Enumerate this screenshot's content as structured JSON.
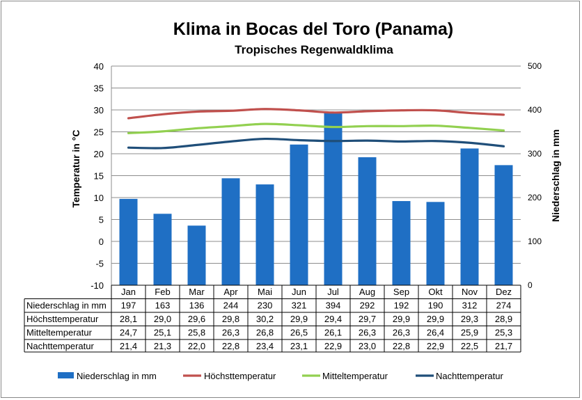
{
  "chart_data": {
    "type": "bar",
    "title": "Klima in Bocas del Toro (Panama)",
    "subtitle": "Tropisches Regenwaldklima",
    "categories": [
      "Jan",
      "Feb",
      "Mar",
      "Apr",
      "Mai",
      "Jun",
      "Jul",
      "Aug",
      "Sep",
      "Okt",
      "Nov",
      "Dez"
    ],
    "ylabel_left": "Temperatur in °C",
    "ylabel_right": "Niederschlag in mm",
    "ylim_left": [
      -10,
      40
    ],
    "ylim_right": [
      0,
      500
    ],
    "yticks_left": [
      "40",
      "35",
      "30",
      "25",
      "20",
      "15",
      "10",
      "5",
      "0",
      "-5",
      "-10"
    ],
    "yticks_right": [
      "500",
      "400",
      "300",
      "200",
      "100",
      "0"
    ],
    "grid": true,
    "legend_position": "bottom",
    "series": [
      {
        "name": "Niederschlag in mm",
        "type": "bar",
        "axis": "right",
        "color": "#1F6FC4",
        "values": [
          197,
          163,
          136,
          244,
          230,
          321,
          394,
          292,
          192,
          190,
          312,
          274
        ],
        "labels": [
          "197",
          "163",
          "136",
          "244",
          "230",
          "321",
          "394",
          "292",
          "192",
          "190",
          "312",
          "274"
        ]
      },
      {
        "name": "Höchsttemperatur",
        "type": "line",
        "axis": "left",
        "color": "#C0504D",
        "values": [
          28.1,
          29.0,
          29.6,
          29.8,
          30.2,
          29.9,
          29.4,
          29.7,
          29.9,
          29.9,
          29.3,
          28.9
        ],
        "labels": [
          "28,1",
          "29,0",
          "29,6",
          "29,8",
          "30,2",
          "29,9",
          "29,4",
          "29,7",
          "29,9",
          "29,9",
          "29,3",
          "28,9"
        ]
      },
      {
        "name": "Mitteltemperatur",
        "type": "line",
        "axis": "left",
        "color": "#92D050",
        "values": [
          24.7,
          25.1,
          25.8,
          26.3,
          26.8,
          26.5,
          26.1,
          26.3,
          26.3,
          26.4,
          25.9,
          25.3
        ],
        "labels": [
          "24,7",
          "25,1",
          "25,8",
          "26,3",
          "26,8",
          "26,5",
          "26,1",
          "26,3",
          "26,3",
          "26,4",
          "25,9",
          "25,3"
        ]
      },
      {
        "name": "Nachttemperatur",
        "type": "line",
        "axis": "left",
        "color": "#1F4E79",
        "values": [
          21.4,
          21.3,
          22.0,
          22.8,
          23.4,
          23.1,
          22.9,
          23.0,
          22.8,
          22.9,
          22.5,
          21.7
        ],
        "labels": [
          "21,4",
          "21,3",
          "22,0",
          "22,8",
          "23,4",
          "23,1",
          "22,9",
          "23,0",
          "22,8",
          "22,9",
          "22,5",
          "21,7"
        ]
      }
    ]
  }
}
